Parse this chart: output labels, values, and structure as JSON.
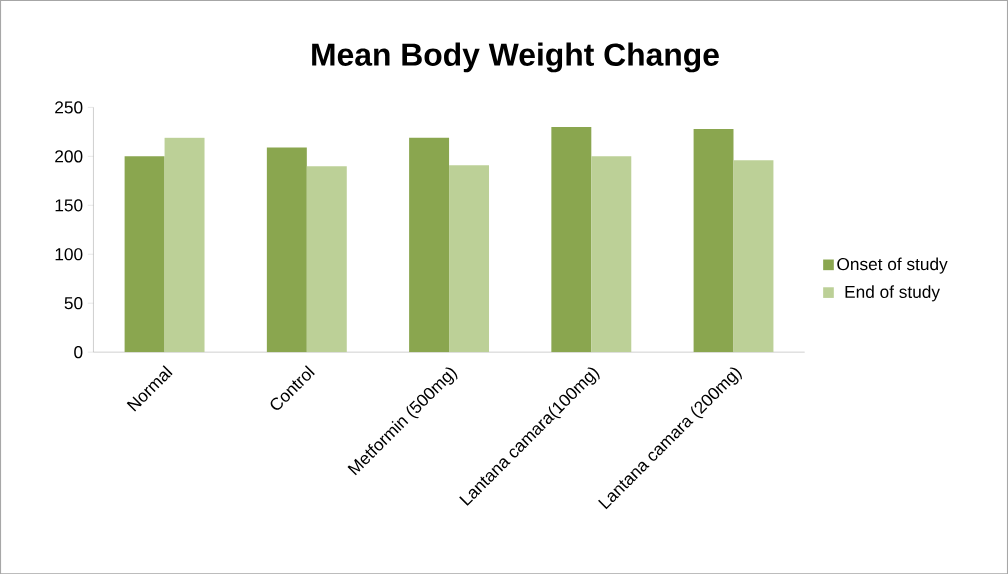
{
  "chart_data": {
    "type": "bar",
    "title": "Mean Body Weight Change",
    "categories": [
      "Normal",
      "Control",
      "Metformin (500mg)",
      "Lantana camara(100mg)",
      "Lantana camara (200mg)"
    ],
    "series": [
      {
        "name": "Onset of study",
        "color": "#8aa64f",
        "values": [
          200,
          209,
          219,
          230,
          228
        ]
      },
      {
        "name": "End of study",
        "color": "#bcd097",
        "values": [
          219,
          190,
          191,
          200,
          196
        ]
      }
    ],
    "ylim": [
      0,
      250
    ],
    "yticks": [
      0,
      50,
      100,
      150,
      200,
      250
    ],
    "legend": "right"
  }
}
